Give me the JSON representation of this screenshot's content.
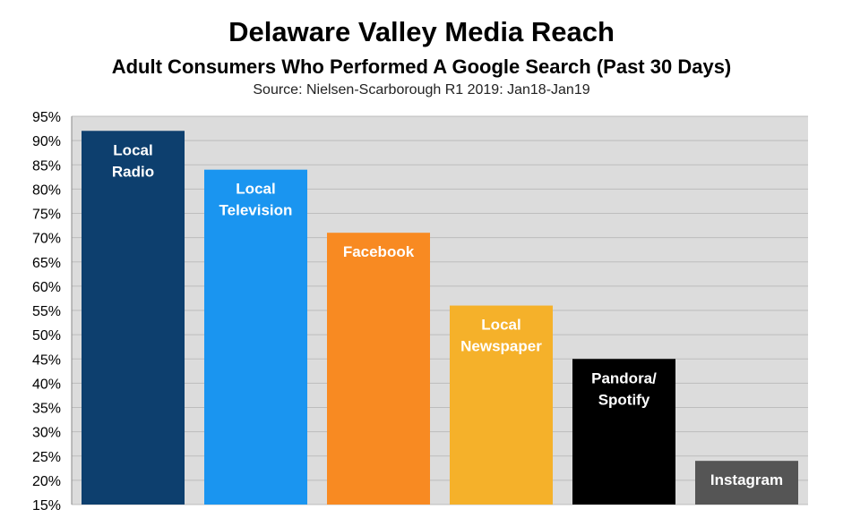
{
  "chart_data": {
    "type": "bar",
    "title": "Delaware Valley Media Reach",
    "subtitle": "Adult Consumers Who Performed A Google Search (Past 30 Days)",
    "source": "Source: Nielsen-Scarborough R1 2019: Jan18-Jan19",
    "categories": [
      "Local Radio",
      "Local Television",
      "Facebook",
      "Local Newspaper",
      "Pandora/ Spotify",
      "Instagram"
    ],
    "label_lines": [
      [
        "Local",
        "Radio"
      ],
      [
        "Local",
        "Television"
      ],
      [
        "Facebook"
      ],
      [
        "Local",
        "Newspaper"
      ],
      [
        "Pandora/",
        "Spotify"
      ],
      [
        "Instagram"
      ]
    ],
    "values": [
      92,
      84,
      71,
      56,
      45,
      24
    ],
    "colors": [
      "#0d3f6e",
      "#1a95f0",
      "#f88a22",
      "#f5b12a",
      "#000000",
      "#555555"
    ],
    "ylim": [
      15,
      95
    ],
    "yticks": [
      15,
      20,
      25,
      30,
      35,
      40,
      45,
      50,
      55,
      60,
      65,
      70,
      75,
      80,
      85,
      90,
      95
    ],
    "ytick_labels": [
      "15%",
      "20%",
      "25%",
      "30%",
      "35%",
      "40%",
      "45%",
      "50%",
      "55%",
      "60%",
      "65%",
      "70%",
      "75%",
      "80%",
      "85%",
      "90%",
      "95%"
    ],
    "grid": true,
    "plot_background": "#dcdcdc",
    "xlabel": "",
    "ylabel": ""
  }
}
